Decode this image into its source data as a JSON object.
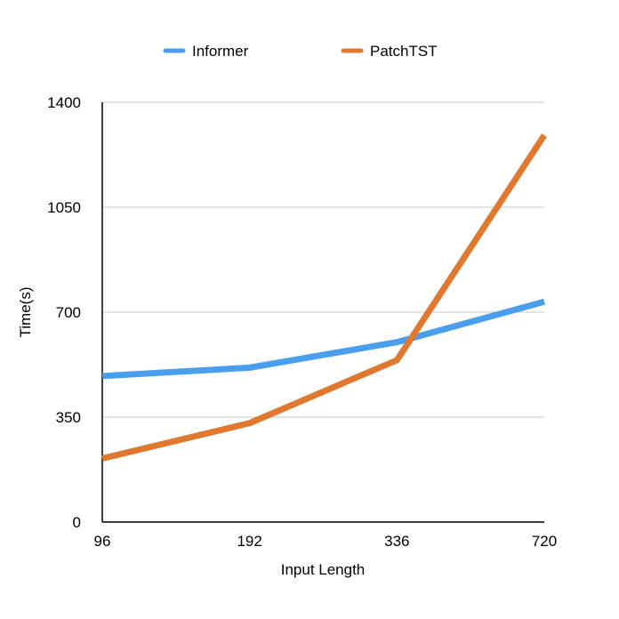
{
  "chart_data": {
    "type": "line",
    "title": "",
    "xlabel": "Input Length",
    "ylabel": "Time(s)",
    "categories": [
      "96",
      "192",
      "336",
      "720"
    ],
    "ylim": [
      0,
      1400
    ],
    "yticks": [
      "0",
      "350",
      "700",
      "1050",
      "1400"
    ],
    "grid": true,
    "legend_position": "top",
    "series": [
      {
        "name": "Informer",
        "color": "#4A9EEE",
        "values": [
          487,
          515,
          600,
          735
        ]
      },
      {
        "name": "PatchTST",
        "color": "#E0782F",
        "values": [
          212,
          330,
          540,
          1290
        ]
      }
    ]
  }
}
